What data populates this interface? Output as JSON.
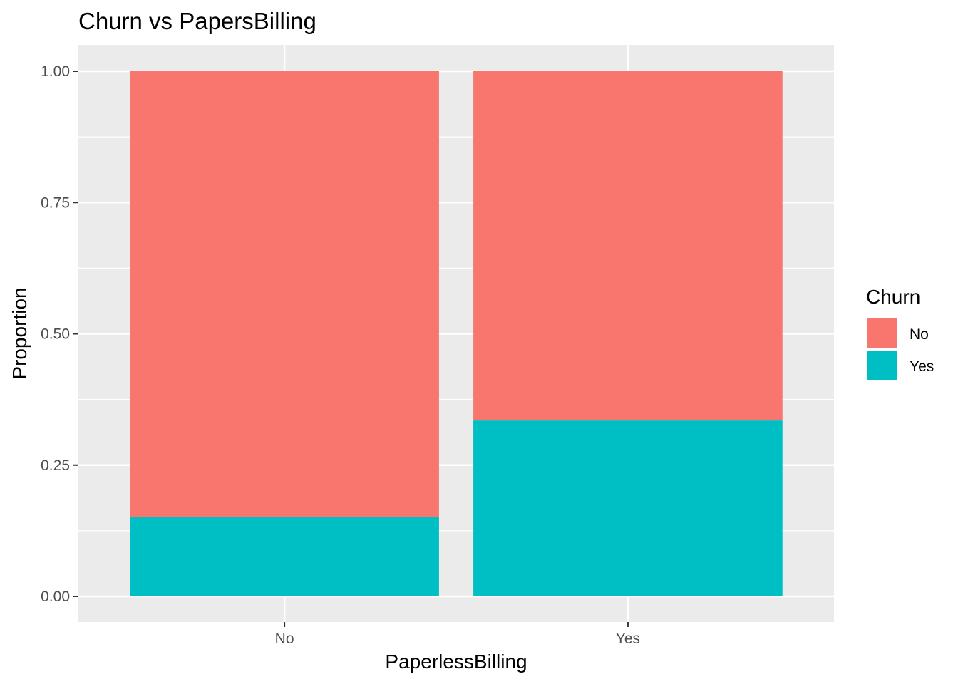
{
  "chart_data": {
    "type": "bar",
    "stacked": true,
    "title": "Churn vs PapersBilling",
    "xlabel": "PaperlessBilling",
    "ylabel": "Proportion",
    "categories": [
      "No",
      "Yes"
    ],
    "ylim": [
      0,
      1
    ],
    "yticks": [
      0,
      0.25,
      0.5,
      0.75,
      1
    ],
    "ytick_labels": [
      "0.00",
      "0.25",
      "0.50",
      "0.75",
      "1.00"
    ],
    "series": [
      {
        "name": "No",
        "values": [
          0.848,
          0.665
        ],
        "color": "#F8766D"
      },
      {
        "name": "Yes",
        "values": [
          0.152,
          0.335
        ],
        "color": "#00BFC4"
      }
    ],
    "legend": {
      "title": "Churn",
      "placement": "right"
    },
    "grid": true,
    "panel_background": "#EBEBEB",
    "grid_color": "#FFFFFF"
  }
}
